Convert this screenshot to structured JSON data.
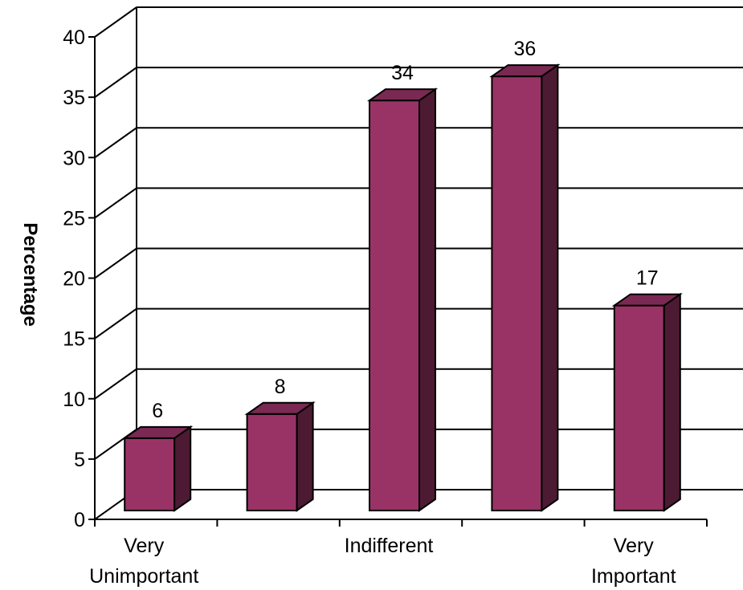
{
  "chart_data": {
    "type": "bar",
    "title": "",
    "xlabel": "",
    "ylabel": "Percentage",
    "ylim": [
      0,
      40
    ],
    "y_ticks": [
      0,
      5,
      10,
      15,
      20,
      25,
      30,
      35,
      40
    ],
    "grid": true,
    "categories": [
      "Very Unimportant",
      "",
      "Indifferent",
      "",
      "Very Important"
    ],
    "category_labels": [
      [
        "Very",
        "Unimportant"
      ],
      [],
      [
        "Indifferent"
      ],
      [],
      [
        "Very",
        "Important"
      ]
    ],
    "values": [
      6,
      8,
      34,
      36,
      17
    ],
    "data_labels": [
      "6",
      "8",
      "34",
      "36",
      "17"
    ],
    "colors": {
      "bar_front": "#993366",
      "bar_top": "#7a2952",
      "bar_side": "#4d1a33",
      "grid": "#000000",
      "background": "#ffffff"
    }
  }
}
